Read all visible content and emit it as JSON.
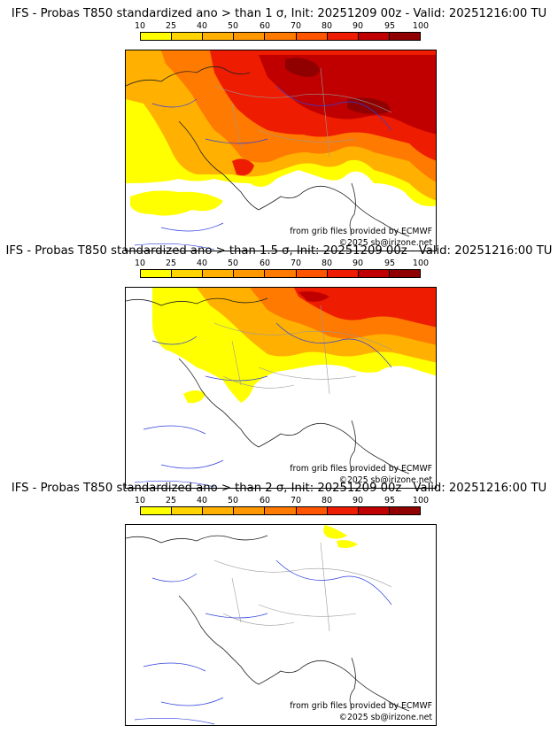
{
  "colorbar": {
    "labels": [
      "10",
      "25",
      "40",
      "50",
      "60",
      "70",
      "80",
      "90",
      "95",
      "100"
    ],
    "colors": [
      "#ffff00",
      "#ffd400",
      "#ffb000",
      "#ff9800",
      "#ff7a00",
      "#ff5500",
      "#ee1c00",
      "#c00000",
      "#900000",
      "#600000"
    ]
  },
  "panels": [
    {
      "title": "IFS - Probas T850  standardized ano > than 1 σ, Init: 20251209 00z - Valid: 20251216:00 TU",
      "credit_source": "from grib files provided by ECMWF",
      "credit_copyright": "©2025 sb@irizone.net"
    },
    {
      "title": "IFS - Probas T850  standardized ano > than 1.5 σ, Init: 20251209 00z - Valid: 20251216:00 TU",
      "credit_source": "from grib files provided by ECMWF",
      "credit_copyright": "©2025 sb@irizone.net"
    },
    {
      "title": "IFS - Probas T850  standardized ano > than 2 σ, Init: 20251209 00z - Valid: 20251216:00 TU",
      "credit_source": "from grib files provided by ECMWF",
      "credit_copyright": "©2025 sb@irizone.net"
    }
  ]
}
